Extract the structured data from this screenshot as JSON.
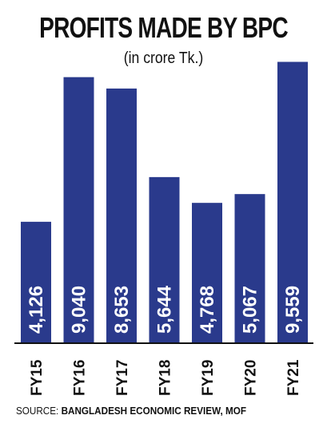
{
  "title": "PROFITS MADE BY BPC",
  "subtitle": "(in crore Tk.)",
  "source": {
    "label": "SOURCE:",
    "value": "BANGLADESH ECONOMIC REVIEW, MOF"
  },
  "colors": {
    "bar": "#2a3a8c",
    "bar_text": "#ffffff",
    "axis": "#111111"
  },
  "chart_data": {
    "type": "bar",
    "title": "PROFITS MADE BY BPC",
    "subtitle": "(in crore Tk.)",
    "categories": [
      "FY15",
      "FY16",
      "FY17",
      "FY18",
      "FY19",
      "FY20",
      "FY21"
    ],
    "values": [
      4126,
      9040,
      8653,
      5644,
      4768,
      5067,
      9559
    ],
    "value_labels": [
      "4,126",
      "9,040",
      "8,653",
      "5,644",
      "4,768",
      "5,067",
      "9,559"
    ],
    "ylim": [
      0,
      9600
    ],
    "grid": false,
    "legend": "none"
  }
}
